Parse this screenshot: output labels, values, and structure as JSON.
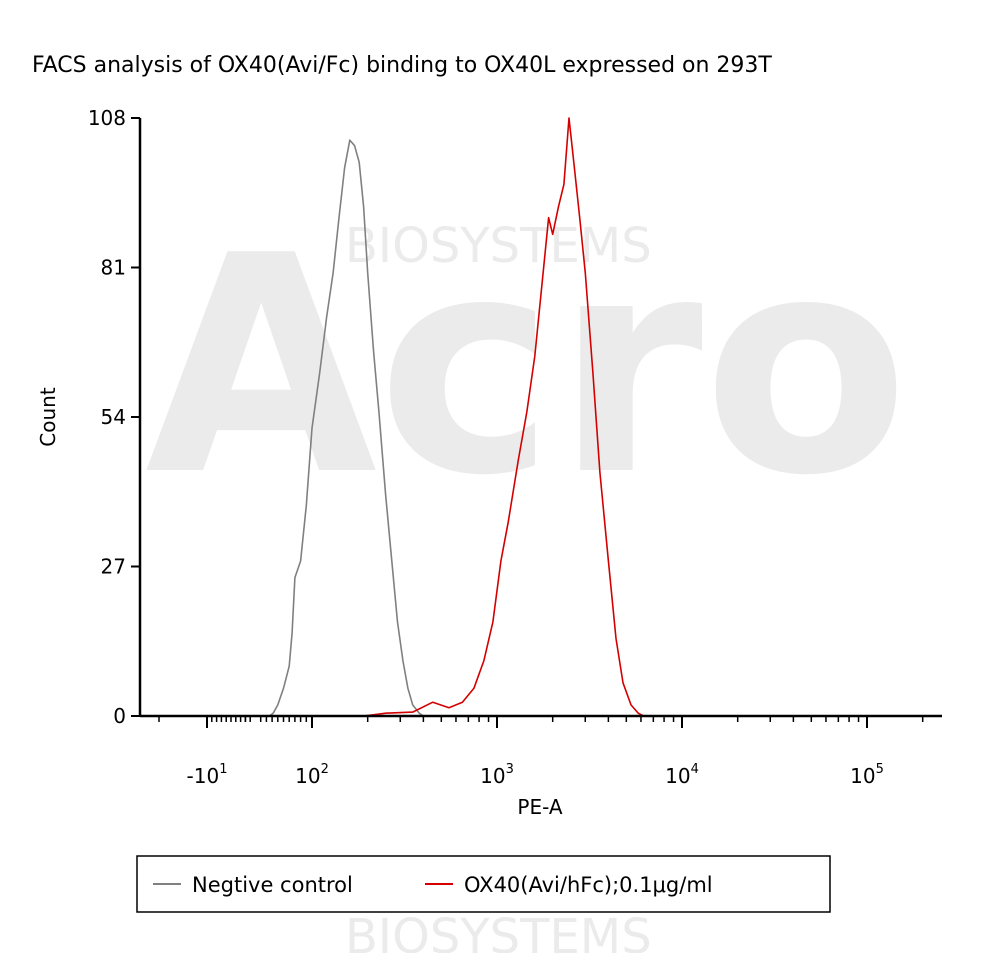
{
  "chart_data": {
    "type": "line",
    "title": "FACS analysis of OX40(Avi/Fc) binding to OX40L expressed on 293T",
    "xlabel": "PE-A",
    "ylabel": "Count",
    "ylim": [
      0,
      108
    ],
    "x_scale": "biexponential",
    "y_ticks": [
      "0",
      "27",
      "54",
      "81",
      "108"
    ],
    "x_ticks": [
      {
        "value": -10,
        "base": "-10",
        "exp": "1"
      },
      {
        "value": 100,
        "base": "10",
        "exp": "2"
      },
      {
        "value": 1000,
        "base": "10",
        "exp": "3"
      },
      {
        "value": 10000,
        "base": "10",
        "exp": "4"
      },
      {
        "value": 100000,
        "base": "10",
        "exp": "5"
      }
    ],
    "grid": false,
    "legend_position": "bottom",
    "series": [
      {
        "name": "Negtive control",
        "color": "#808080",
        "points": [
          [
            25,
            0
          ],
          [
            32,
            0.5
          ],
          [
            40,
            2
          ],
          [
            50,
            5
          ],
          [
            60,
            9
          ],
          [
            65,
            15
          ],
          [
            70,
            25
          ],
          [
            80,
            28
          ],
          [
            90,
            38
          ],
          [
            100,
            52
          ],
          [
            110,
            62
          ],
          [
            120,
            72
          ],
          [
            130,
            80
          ],
          [
            140,
            90
          ],
          [
            150,
            99
          ],
          [
            160,
            104
          ],
          [
            170,
            103
          ],
          [
            180,
            100
          ],
          [
            190,
            92
          ],
          [
            200,
            80
          ],
          [
            215,
            66
          ],
          [
            230,
            55
          ],
          [
            250,
            40
          ],
          [
            270,
            28
          ],
          [
            290,
            17
          ],
          [
            310,
            10
          ],
          [
            330,
            5
          ],
          [
            350,
            2
          ],
          [
            380,
            0.5
          ],
          [
            400,
            0
          ]
        ]
      },
      {
        "name": "OX40(Avi/hFc);0.1μg/ml",
        "color": "#d40000",
        "points": [
          [
            190,
            0
          ],
          [
            250,
            0.5
          ],
          [
            350,
            0.7
          ],
          [
            450,
            2.5
          ],
          [
            550,
            1.5
          ],
          [
            650,
            2.5
          ],
          [
            750,
            5
          ],
          [
            850,
            10
          ],
          [
            950,
            17
          ],
          [
            1050,
            28
          ],
          [
            1150,
            35
          ],
          [
            1300,
            46
          ],
          [
            1450,
            55
          ],
          [
            1600,
            65
          ],
          [
            1750,
            78
          ],
          [
            1900,
            90
          ],
          [
            2000,
            87
          ],
          [
            2150,
            92
          ],
          [
            2300,
            96
          ],
          [
            2450,
            108
          ],
          [
            2600,
            100
          ],
          [
            2800,
            90
          ],
          [
            3000,
            80
          ],
          [
            3300,
            62
          ],
          [
            3600,
            44
          ],
          [
            4000,
            28
          ],
          [
            4400,
            14
          ],
          [
            4800,
            6
          ],
          [
            5300,
            2
          ],
          [
            5800,
            0.5
          ],
          [
            6200,
            0
          ]
        ]
      }
    ]
  },
  "watermark": {
    "logo": "Acro",
    "text": "BIOSYSTEMS"
  }
}
